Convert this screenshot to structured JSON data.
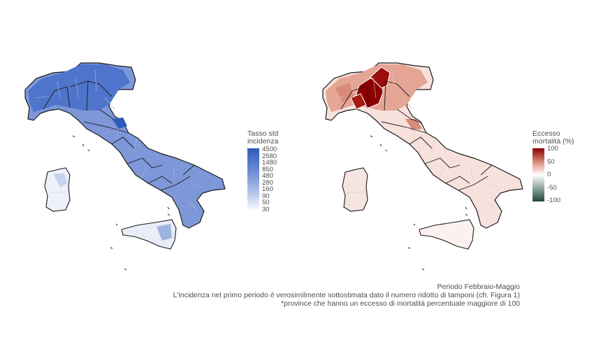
{
  "left_legend": {
    "title_line1": "Tasso std",
    "title_line2": "incidenza",
    "ticks": [
      "4500",
      "2580",
      "1480",
      "850",
      "480",
      "280",
      "160",
      "90",
      "50",
      "30"
    ],
    "color_high": "#2c5cb8",
    "color_low": "#ffffff"
  },
  "right_legend": {
    "title_line1": "Eccesso",
    "title_line2": "mortalità (%)",
    "ticks": [
      "100",
      "50",
      "0",
      "-50",
      "-100"
    ],
    "color_high": "#8b0000",
    "color_mid": "#ffffff",
    "color_low": "#1f4a3a"
  },
  "captions": {
    "line1": "Periodo Febbraio-Maggio",
    "line2": "L'incidenza nel primo periodo è verosimilmente sottostimata dato il numero ridotto di tamponi (cfr. Figura 1)",
    "line3": "*province che hanno un eccesso di mortalità percentuale maggiore di 100"
  }
}
